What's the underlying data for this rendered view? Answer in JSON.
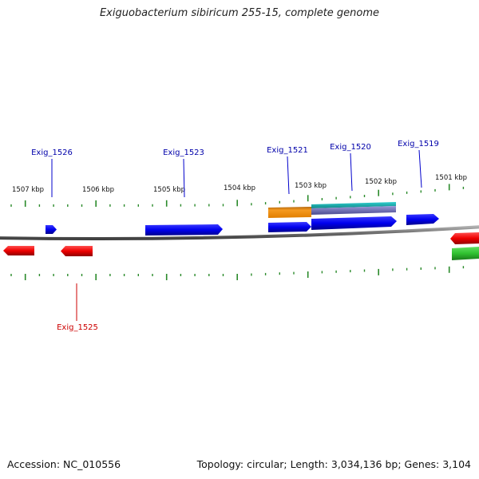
{
  "title": "Exiguobacterium sibiricum 255-15, complete genome",
  "footer": {
    "accession": "Accession: NC_010556",
    "summary": "Topology: circular; Length: 3,034,136 bp; Genes: 3,104"
  },
  "ruler": {
    "labels": [
      "1507 kbp",
      "1506 kbp",
      "1505 kbp",
      "1504 kbp",
      "1503 kbp",
      "1502 kbp",
      "1501 kbp"
    ]
  },
  "gene_labels": {
    "exig_1526": "Exig_1526",
    "exig_1523": "Exig_1523",
    "exig_1521": "Exig_1521",
    "exig_1520": "Exig_1520",
    "exig_1519": "Exig_1519",
    "exig_1525": "Exig_1525"
  },
  "colors": {
    "forward_gene": "#0000ee",
    "reverse_gene": "#ee0000",
    "forward_label": "#0000aa",
    "reverse_label": "#cc0000",
    "ticks": "#2a8a2a",
    "backbone": "#808080",
    "orange_feature": "#f08c10",
    "teal_feature": "#20b0b0",
    "purple_feature": "#7070b0",
    "green_feature": "#30c030"
  }
}
